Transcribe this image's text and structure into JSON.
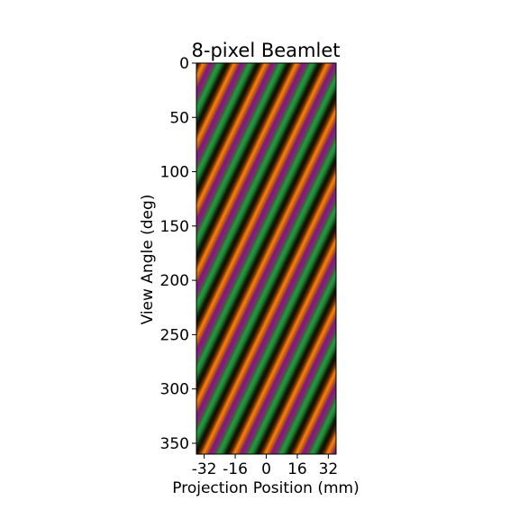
{
  "chart_data": {
    "type": "heatmap",
    "title": "8-pixel Beamlet",
    "xlabel": "Projection Position (mm)",
    "ylabel": "View Angle (deg)",
    "xlim": [
      -36,
      36
    ],
    "ylim": [
      360,
      0
    ],
    "x_ticks": [
      -32,
      -16,
      0,
      16,
      32
    ],
    "x_tick_labels": [
      "-32",
      "-16",
      "0",
      "16",
      "32"
    ],
    "y_ticks": [
      0,
      50,
      100,
      150,
      200,
      250,
      300,
      350
    ],
    "y_tick_labels": [
      "0",
      "50",
      "100",
      "150",
      "200",
      "250",
      "300",
      "350"
    ],
    "pattern": {
      "stripe_period_mm": 16,
      "stripe_shift_mm_per_deg": 0.267,
      "color_cycle": [
        "#1a0c03",
        "#ff7f0e",
        "#7f1f7f",
        "#8a1a8a",
        "#1f9d44",
        "#2ca02c",
        "#1a0c03"
      ]
    },
    "grid": false
  }
}
